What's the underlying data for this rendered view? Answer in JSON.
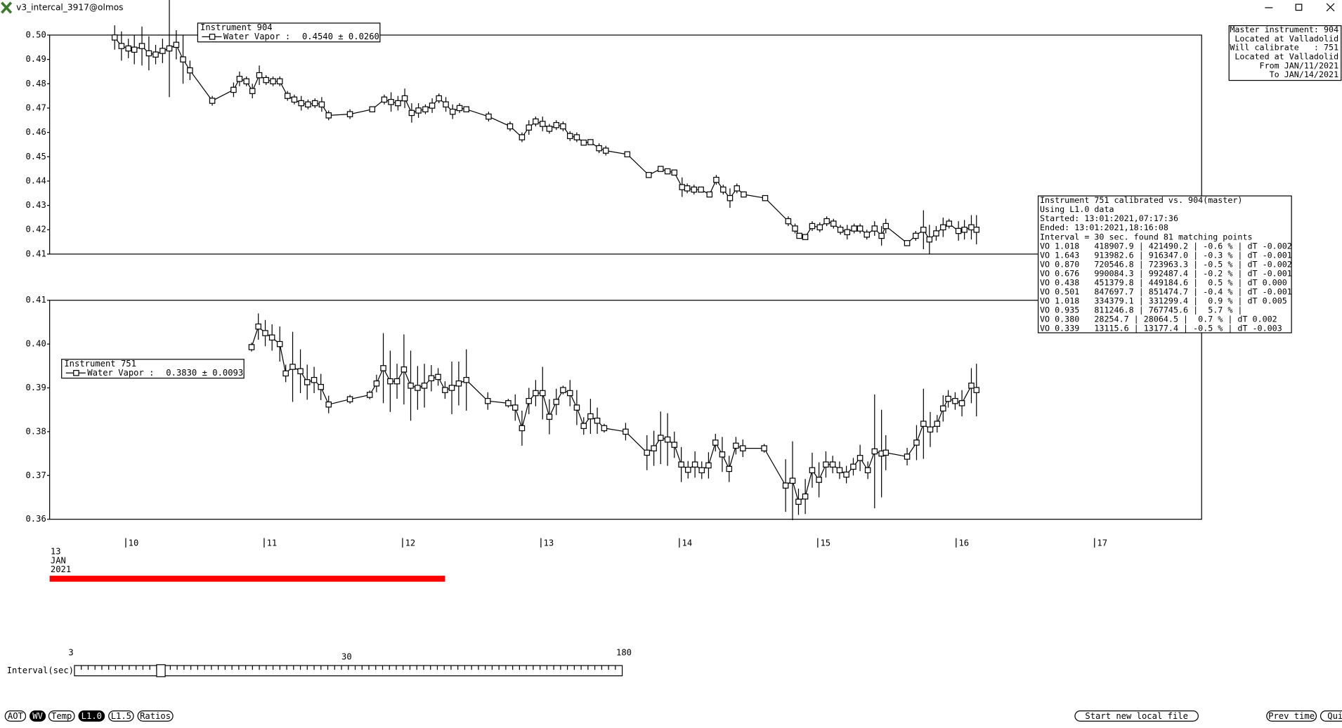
{
  "window": {
    "title": "v3_intercal_3917@olmos"
  },
  "chart_data": [
    {
      "type": "line",
      "legend_title": "Instrument 904",
      "legend_stat": "0.4540 ± 0.0260",
      "xlim": [
        9.45,
        17.774
      ],
      "ylim": [
        0.41,
        0.5
      ],
      "yticks": [
        {
          "value": 0.5,
          "label": "0.50"
        },
        0.49,
        0.48,
        0.47,
        0.46,
        0.45,
        0.44,
        0.43,
        0.42,
        0.41
      ],
      "series": [
        {
          "name": "Water Vapor :",
          "color": "#000000",
          "x": [
            9.92,
            9.969,
            10.019,
            10.062,
            10.117,
            10.167,
            10.216,
            10.266,
            10.315,
            10.365,
            10.414,
            10.464,
            10.625,
            10.779,
            10.822,
            10.872,
            10.915,
            10.965,
            11.014,
            11.064,
            11.113,
            11.169,
            11.218,
            11.268,
            11.317,
            11.367,
            11.416,
            11.466,
            11.62,
            11.781,
            11.868,
            11.917,
            11.967,
            12.016,
            12.066,
            12.115,
            12.165,
            12.214,
            12.263,
            12.313,
            12.362,
            12.412,
            12.461,
            12.622,
            12.777,
            12.863,
            12.913,
            12.962,
            13.012,
            13.061,
            13.111,
            13.16,
            13.21,
            13.259,
            13.309,
            13.358,
            13.42,
            13.469,
            13.624,
            13.779,
            13.865,
            13.915,
            13.964,
            14.02,
            14.057,
            14.106,
            14.156,
            14.218,
            14.267,
            14.317,
            14.366,
            14.416,
            14.465,
            14.62,
            14.787,
            14.836,
            14.867,
            14.91,
            14.96,
            15.015,
            15.065,
            15.114,
            15.164,
            15.213,
            15.263,
            15.306,
            15.355,
            15.411,
            15.461,
            15.492,
            15.646,
            15.708,
            15.764,
            15.807,
            15.856,
            15.906,
            15.949,
            16.017,
            16.06,
            16.11,
            16.147
          ],
          "values": [
            0.499,
            0.4955,
            0.4945,
            0.494,
            0.4955,
            0.4925,
            0.492,
            0.4935,
            0.4945,
            0.496,
            0.49,
            0.4855,
            0.473,
            0.4775,
            0.482,
            0.481,
            0.477,
            0.4835,
            0.4815,
            0.481,
            0.481,
            0.475,
            0.4735,
            0.472,
            0.4715,
            0.472,
            0.4715,
            0.467,
            0.4675,
            0.4695,
            0.4735,
            0.4725,
            0.472,
            0.474,
            0.468,
            0.469,
            0.4695,
            0.471,
            0.474,
            0.4715,
            0.4685,
            0.47,
            0.4695,
            0.4665,
            0.4625,
            0.458,
            0.462,
            0.4645,
            0.4635,
            0.4615,
            0.463,
            0.4625,
            0.4585,
            0.458,
            0.4558,
            0.456,
            0.4535,
            0.4525,
            0.451,
            0.4425,
            0.445,
            0.444,
            0.4435,
            0.4375,
            0.437,
            0.4365,
            0.4365,
            0.4345,
            0.4405,
            0.4365,
            0.433,
            0.437,
            0.4345,
            0.433,
            0.4235,
            0.4205,
            0.4175,
            0.417,
            0.4215,
            0.421,
            0.4235,
            0.4225,
            0.42,
            0.419,
            0.4205,
            0.4205,
            0.418,
            0.4205,
            0.4175,
            0.4215,
            0.4145,
            0.4175,
            0.42,
            0.416,
            0.4185,
            0.421,
            0.4225,
            0.4195,
            0.42,
            0.421,
            0.42
          ],
          "errors": [
            0.005,
            0.006,
            0.004,
            0.006,
            0.008,
            0.007,
            0.004,
            0.005,
            0.02,
            0.006,
            0.01,
            0.004,
            0.002,
            0.003,
            0.003,
            0.002,
            0.003,
            0.004,
            0.002,
            0.002,
            0.002,
            0.002,
            0.002,
            0.003,
            0.002,
            0.002,
            0.003,
            0.002,
            0.002,
            0.001,
            0.002,
            0.004,
            0.003,
            0.004,
            0.004,
            0.003,
            0.002,
            0.003,
            0.002,
            0.003,
            0.003,
            0.002,
            0.001,
            0.002,
            0.002,
            0.002,
            0.003,
            0.002,
            0.003,
            0.002,
            0.002,
            0.002,
            0.002,
            0.002,
            0.001,
            0.001,
            0.002,
            0.002,
            0.001,
            0.001,
            0.001,
            0.001,
            0.001,
            0.004,
            0.002,
            0.002,
            0.001,
            0.001,
            0.002,
            0.002,
            0.004,
            0.002,
            0.001,
            0.001,
            0.002,
            0.002,
            0.001,
            0.001,
            0.002,
            0.002,
            0.002,
            0.002,
            0.002,
            0.003,
            0.002,
            0.002,
            0.002,
            0.003,
            0.004,
            0.003,
            0.001,
            0.002,
            0.008,
            0.006,
            0.003,
            0.004,
            0.002,
            0.004,
            0.004,
            0.005,
            0.006
          ]
        }
      ]
    },
    {
      "type": "line",
      "legend_title": "Instrument 751",
      "legend_stat": "0.3830 ± 0.0093",
      "xlim": [
        9.45,
        17.774
      ],
      "ylim": [
        0.36,
        0.41
      ],
      "xticks": [
        10,
        11,
        12,
        13,
        14,
        15,
        16,
        17
      ],
      "x_date_label": [
        "13",
        "JAN",
        "2021"
      ],
      "yticks": [
        0.41,
        {
          "value": 0.4,
          "label": "0.40"
        },
        0.39,
        0.38,
        0.37,
        0.36
      ],
      "series": [
        {
          "name": "Water Vapor :",
          "color": "#000000",
          "x": [
            10.909,
            10.958,
            11.008,
            11.057,
            11.113,
            11.156,
            11.206,
            11.262,
            11.311,
            11.361,
            11.41,
            11.466,
            11.62,
            11.763,
            11.812,
            11.861,
            11.911,
            11.96,
            12.01,
            12.059,
            12.109,
            12.158,
            12.208,
            12.257,
            12.307,
            12.356,
            12.406,
            12.461,
            12.616,
            12.764,
            12.814,
            12.863,
            12.913,
            12.962,
            13.012,
            13.061,
            13.111,
            13.16,
            13.21,
            13.259,
            13.309,
            13.358,
            13.407,
            13.457,
            13.612,
            13.766,
            13.816,
            13.865,
            13.915,
            13.964,
            14.014,
            14.063,
            14.113,
            14.162,
            14.211,
            14.261,
            14.31,
            14.36,
            14.409,
            14.459,
            14.613,
            14.768,
            14.818,
            14.861,
            14.91,
            14.96,
            15.009,
            15.059,
            15.108,
            15.158,
            15.207,
            15.257,
            15.306,
            15.362,
            15.411,
            15.461,
            15.492,
            15.646,
            15.714,
            15.764,
            15.813,
            15.863,
            15.906,
            15.943,
            15.993,
            16.042,
            16.11,
            16.147
          ],
          "values": [
            0.3993,
            0.404,
            0.4025,
            0.4015,
            0.4,
            0.3933,
            0.3948,
            0.3938,
            0.3913,
            0.3918,
            0.3902,
            0.3862,
            0.3874,
            0.3884,
            0.391,
            0.3945,
            0.3915,
            0.3915,
            0.3942,
            0.3905,
            0.39,
            0.3905,
            0.3922,
            0.3925,
            0.3895,
            0.39,
            0.391,
            0.3918,
            0.387,
            0.3865,
            0.3855,
            0.3808,
            0.387,
            0.3888,
            0.3888,
            0.3834,
            0.3868,
            0.3895,
            0.3888,
            0.3855,
            0.3813,
            0.3835,
            0.3825,
            0.3808,
            0.38,
            0.3752,
            0.3762,
            0.3786,
            0.3782,
            0.377,
            0.3725,
            0.3713,
            0.3725,
            0.3712,
            0.3723,
            0.3775,
            0.3748,
            0.3715,
            0.3768,
            0.3762,
            0.3762,
            0.3677,
            0.3688,
            0.364,
            0.3652,
            0.3712,
            0.369,
            0.3725,
            0.3725,
            0.3712,
            0.3702,
            0.372,
            0.374,
            0.3712,
            0.3755,
            0.375,
            0.3752,
            0.3743,
            0.3775,
            0.3818,
            0.3805,
            0.3818,
            0.3853,
            0.3875,
            0.387,
            0.3865,
            0.3905,
            0.3895
          ],
          "errors": [
            0.001,
            0.003,
            0.003,
            0.003,
            0.004,
            0.002,
            0.008,
            0.005,
            0.004,
            0.003,
            0.003,
            0.002,
            0.001,
            0.001,
            0.002,
            0.008,
            0.007,
            0.004,
            0.008,
            0.008,
            0.005,
            0.005,
            0.003,
            0.002,
            0.002,
            0.006,
            0.005,
            0.007,
            0.002,
            0.001,
            0.003,
            0.004,
            0.003,
            0.003,
            0.006,
            0.004,
            0.003,
            0.001,
            0.003,
            0.004,
            0.002,
            0.004,
            0.003,
            0.001,
            0.002,
            0.004,
            0.004,
            0.006,
            0.006,
            0.003,
            0.004,
            0.002,
            0.003,
            0.002,
            0.003,
            0.002,
            0.004,
            0.003,
            0.002,
            0.002,
            0.001,
            0.006,
            0.009,
            0.003,
            0.004,
            0.004,
            0.004,
            0.003,
            0.002,
            0.002,
            0.002,
            0.002,
            0.003,
            0.002,
            0.013,
            0.01,
            0.004,
            0.002,
            0.004,
            0.008,
            0.004,
            0.002,
            0.003,
            0.002,
            0.002,
            0.003,
            0.004,
            0.006
          ]
        }
      ]
    }
  ],
  "master_info": [
    "Master instrument: 904",
    "Located at Valladolid",
    "Will calibrate   : 751",
    "Located at Valladolid",
    "From JAN/11/2021",
    "To JAN/14/2021"
  ],
  "calibration_info": [
    "Instrument 751 calibrated vs. 904(master)",
    "Using L1.0 data",
    "Started: 13:01:2021,07:17:36",
    "Ended: 13:01:2021,18:16:08",
    "Interval = 30 sec. found 81 matching points",
    "VO 1.018   418907.9 | 421490.2 | -0.6 % | dT -0.002",
    "VO 1.643   913982.6 | 916347.0 | -0.3 % | dT -0.001",
    "VO 0.870   720546.8 | 723963.3 | -0.5 % | dT -0.002",
    "VO 0.676   990084.3 | 992487.4 | -0.2 % | dT -0.001",
    "VO 0.438   451379.8 | 449184.6 |  0.5 % | dT 0.000",
    "VO 0.501   847697.7 | 851474.7 | -0.4 % | dT -0.001",
    "VO 1.018   334379.1 | 331299.4 |  0.9 % | dT 0.005",
    "VO 0.935   811246.8 | 767745.6 |  5.7 % |",
    "VO 0.380   28254.7 | 28064.5 |  0.7 % | dT 0.002",
    "VO 0.339   13115.6 | 13177.4 | -0.5 % | dT -0.003"
  ],
  "slider": {
    "label": "Interval(sec)",
    "ticks": [
      3,
      30,
      180
    ]
  },
  "buttons": {
    "left": [
      "AOT",
      "WV",
      "Temp",
      "L1.0",
      "L1.5",
      "Ratios"
    ],
    "right": [
      "Start new local file",
      "Prev time",
      "Quit"
    ]
  }
}
